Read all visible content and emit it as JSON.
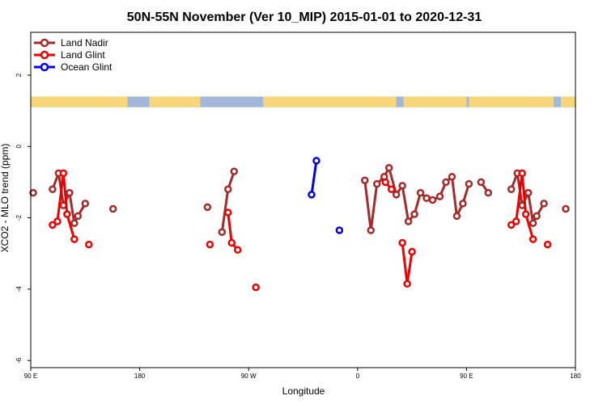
{
  "chart_data": {
    "type": "line",
    "title": "50N-55N November (Ver 10_MIP)   2015-01-01 to 2020-12-31",
    "xlabel": "Longitude",
    "ylabel": "XCO2 - MLO trend (ppm)",
    "xlim": [
      90,
      540
    ],
    "ylim": [
      -6.2,
      3.2
    ],
    "x_ticks": [
      {
        "value": 90,
        "label": "90 E"
      },
      {
        "value": 180,
        "label": "180"
      },
      {
        "value": 270,
        "label": "90 W"
      },
      {
        "value": 360,
        "label": "0"
      },
      {
        "value": 450,
        "label": "90 E"
      },
      {
        "value": 540,
        "label": "180"
      }
    ],
    "y_ticks": [
      {
        "value": 2,
        "label": "2"
      },
      {
        "value": 0,
        "label": "0"
      },
      {
        "value": -2,
        "label": "-2"
      },
      {
        "value": -4,
        "label": "-4"
      },
      {
        "value": -6,
        "label": "-6"
      }
    ],
    "legend_position": "top-left",
    "land_sea_band": {
      "y_range": [
        1.1,
        1.4
      ],
      "ocean_color": "#a3b8d8",
      "land_color": "#f8d77a"
    },
    "series": [
      {
        "name": "Land Nadir",
        "color": "#a52a2a",
        "segments": [
          [
            [
              92,
              -1.3
            ]
          ],
          [
            [
              108,
              -1.2
            ],
            [
              113,
              -0.75
            ],
            [
              117,
              -1.65
            ],
            [
              122,
              -1.3
            ],
            [
              126,
              -2.15
            ],
            [
              129,
              -1.95
            ],
            [
              135,
              -1.6
            ]
          ],
          [
            [
              158,
              -1.75
            ]
          ],
          [
            [
              236,
              -1.7
            ]
          ],
          [
            [
              248,
              -2.4
            ],
            [
              253,
              -1.2
            ],
            [
              258,
              -0.7
            ]
          ],
          [
            [
              366,
              -0.95
            ],
            [
              371,
              -2.35
            ],
            [
              376,
              -1.05
            ],
            [
              382,
              -0.85
            ],
            [
              386,
              -0.6
            ],
            [
              392,
              -1.35
            ],
            [
              397,
              -1.1
            ],
            [
              402,
              -2.1
            ],
            [
              407,
              -1.9
            ],
            [
              412,
              -1.3
            ],
            [
              417,
              -1.45
            ],
            [
              422,
              -1.5
            ],
            [
              428,
              -1.4
            ],
            [
              433,
              -1.0
            ],
            [
              438,
              -0.85
            ],
            [
              442,
              -1.95
            ],
            [
              447,
              -1.6
            ],
            [
              452,
              -1.05
            ]
          ],
          [
            [
              462,
              -1.0
            ],
            [
              468,
              -1.3
            ]
          ],
          [
            [
              532,
              -1.75
            ]
          ],
          [
            [
              487,
              -1.2
            ],
            [
              492,
              -0.75
            ],
            [
              496,
              -1.65
            ],
            [
              501,
              -1.3
            ],
            [
              505,
              -2.15
            ],
            [
              508,
              -1.95
            ],
            [
              514,
              -1.6
            ]
          ]
        ]
      },
      {
        "name": "Land Glint",
        "color": "#ee0000",
        "segments": [
          [
            [
              108,
              -2.2
            ],
            [
              112,
              -2.1
            ],
            [
              117,
              -0.75
            ],
            [
              120,
              -1.9
            ],
            [
              126,
              -2.6
            ]
          ],
          [
            [
              138,
              -2.75
            ]
          ],
          [
            [
              238,
              -2.75
            ]
          ],
          [
            [
              253,
              -1.85
            ],
            [
              256,
              -2.7
            ],
            [
              261,
              -2.9
            ]
          ],
          [
            [
              276,
              -3.95
            ]
          ],
          [
            [
              383,
              -1.0
            ],
            [
              388,
              -1.2
            ]
          ],
          [
            [
              397,
              -2.7
            ],
            [
              401,
              -3.85
            ],
            [
              405,
              -2.95
            ]
          ],
          [
            [
              487,
              -2.2
            ],
            [
              491,
              -2.1
            ],
            [
              496,
              -0.75
            ],
            [
              499,
              -1.9
            ],
            [
              505,
              -2.6
            ]
          ],
          [
            [
              517,
              -2.75
            ]
          ]
        ]
      },
      {
        "name": "Ocean Glint",
        "color": "#0000ee",
        "segments": [
          [
            [
              322,
              -1.35
            ],
            [
              326,
              -0.4
            ]
          ],
          [
            [
              345,
              -2.35
            ]
          ]
        ]
      }
    ]
  }
}
